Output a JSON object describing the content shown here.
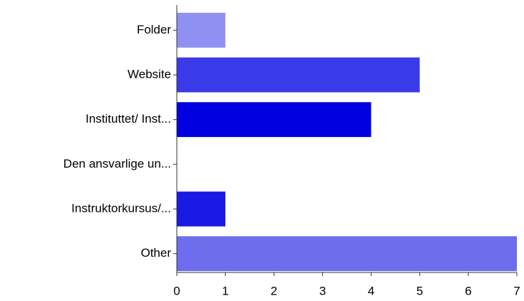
{
  "chart_data": {
    "type": "hbar",
    "categories": [
      "Folder",
      "Website",
      "Instituttet/ Inst...",
      "Den ansvarlige un...",
      "Instruktorkursus/...",
      "Other"
    ],
    "values": [
      1,
      5,
      4,
      0,
      1,
      7
    ],
    "colors": [
      "#9090f2",
      "#3a3ae9",
      "#0000e0",
      "#5050ea",
      "#1a1ae6",
      "#6d6ded"
    ],
    "xlim": [
      0,
      7
    ],
    "xticks": [
      0,
      1,
      2,
      3,
      4,
      5,
      6,
      7
    ],
    "grid": false
  }
}
